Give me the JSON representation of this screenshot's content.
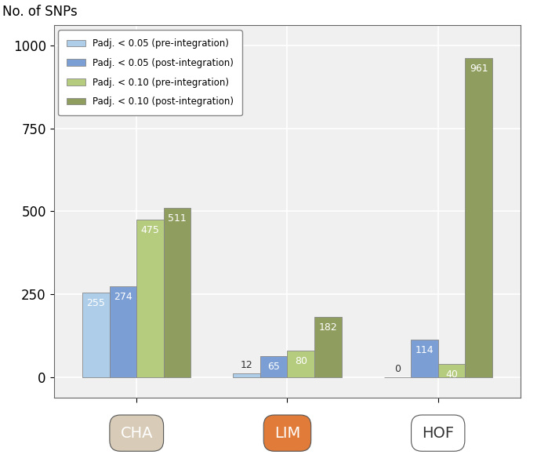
{
  "chart_data": {
    "type": "bar",
    "y_label": "No. of SNPs",
    "categories": [
      "CHA",
      "LIM",
      "HOF"
    ],
    "series": [
      {
        "name": "Padj. < 0.05 (pre-integration)",
        "color": "#aecde8",
        "values": [
          255,
          12,
          0
        ]
      },
      {
        "name": "Padj. < 0.05 (post-integration)",
        "color": "#7b9fd4",
        "values": [
          274,
          65,
          114
        ]
      },
      {
        "name": "Padj. < 0.10 (pre-integration)",
        "color": "#b5cb7e",
        "values": [
          475,
          80,
          40
        ]
      },
      {
        "name": "Padj. < 0.10 (post-integration)",
        "color": "#8f9e5e",
        "values": [
          511,
          182,
          961
        ]
      }
    ],
    "ylim": [
      -60,
      1060
    ],
    "yticks": [
      0,
      250,
      500,
      750,
      1000
    ],
    "grid": true,
    "legend": "upper left",
    "data_labels": true
  }
}
